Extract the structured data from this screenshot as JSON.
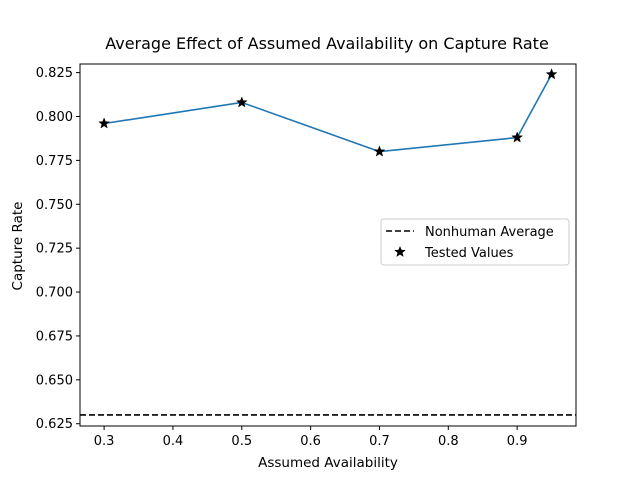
{
  "chart_data": {
    "type": "line",
    "title": "Average Effect of Assumed Availability on Capture Rate",
    "xlabel": "Assumed Availability",
    "ylabel": "Capture Rate",
    "xlim": [
      0.265,
      0.9855
    ],
    "ylim": [
      0.6237,
      0.8299
    ],
    "xticks": [
      0.3,
      0.4,
      0.5,
      0.6,
      0.7,
      0.8,
      0.9
    ],
    "xtick_labels": [
      "0.3",
      "0.4",
      "0.5",
      "0.6",
      "0.7",
      "0.8",
      "0.9"
    ],
    "yticks": [
      0.625,
      0.65,
      0.675,
      0.7,
      0.725,
      0.75,
      0.775,
      0.8,
      0.825
    ],
    "ytick_labels": [
      "0.625",
      "0.650",
      "0.675",
      "0.700",
      "0.725",
      "0.750",
      "0.775",
      "0.800",
      "0.825"
    ],
    "grid": false,
    "legend_position": "center-right",
    "series": [
      {
        "name": "",
        "kind": "line",
        "color": "#1f77b4",
        "x": [
          0.3,
          0.5,
          0.7,
          0.9,
          0.95
        ],
        "y": [
          0.796,
          0.808,
          0.78,
          0.788,
          0.824
        ]
      },
      {
        "name": "Nonhuman Average",
        "kind": "hline",
        "style": "dashed",
        "color": "#000000",
        "y": 0.63
      },
      {
        "name": "Tested Values",
        "kind": "scatter",
        "marker": "star",
        "color": "#000000",
        "x": [
          0.3,
          0.5,
          0.7,
          0.9,
          0.95
        ],
        "y": [
          0.796,
          0.808,
          0.78,
          0.788,
          0.824
        ]
      }
    ]
  }
}
